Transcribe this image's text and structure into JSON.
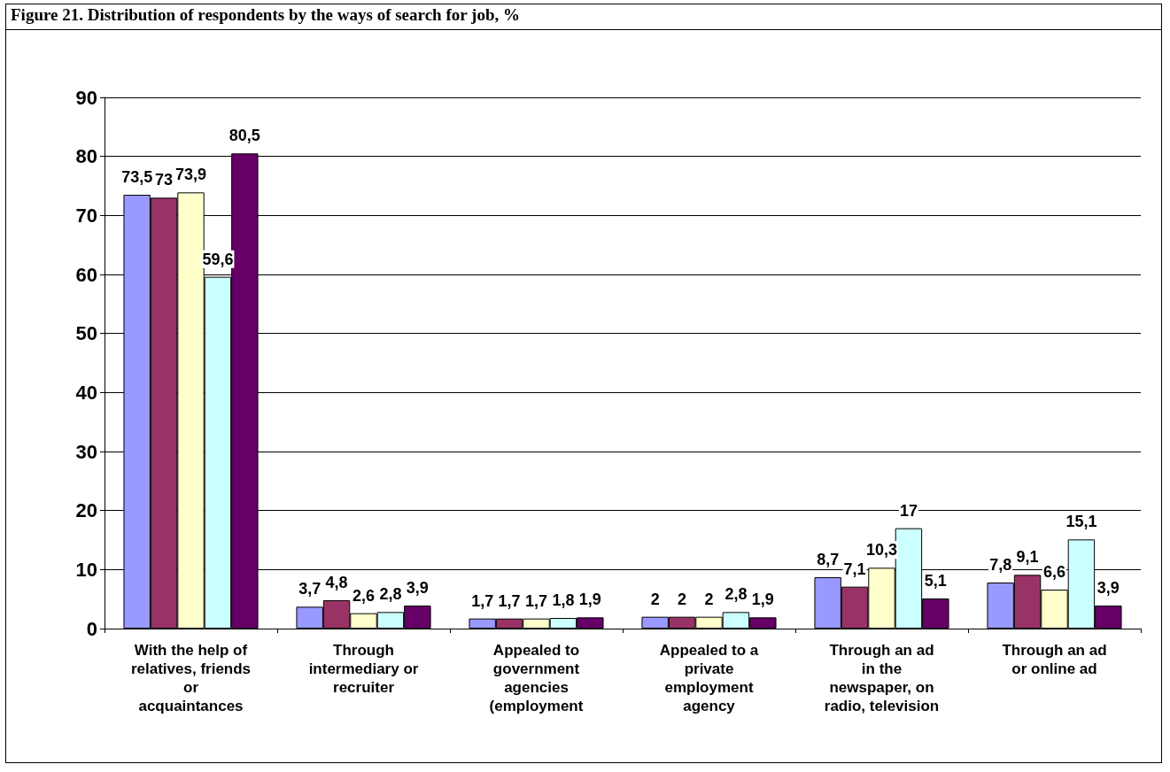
{
  "chart_data": {
    "type": "bar",
    "title": "Figure 21. Distribution of respondents by the ways of search for job, %",
    "categories": [
      "With the help of\nrelatives, friends\nor\nacquaintances",
      "Through\nintermediary or\nrecruiter",
      "Appealed to\ngovernment\nagencies\n(employment",
      "Appealed to a\nprivate\nemployment\nagency",
      "Through an ad\nin the\nnewspaper, on\nradio, television",
      "Through an ad\nor online ad"
    ],
    "series": [
      {
        "color": "#9999ff",
        "values": [
          73.5,
          3.7,
          1.7,
          2,
          8.7,
          7.8
        ],
        "value_labels": [
          "73,5",
          "3,7",
          "1,7",
          "2",
          "8,7",
          "7,8"
        ]
      },
      {
        "color": "#993366",
        "values": [
          73,
          4.8,
          1.7,
          2,
          7.1,
          9.1
        ],
        "value_labels": [
          "73",
          "4,8",
          "1,7",
          "2",
          "7,1",
          "9,1"
        ]
      },
      {
        "color": "#ffffcc",
        "values": [
          73.9,
          2.6,
          1.7,
          2,
          10.3,
          6.6
        ],
        "value_labels": [
          "73,9",
          "2,6",
          "1,7",
          "2",
          "10,3",
          "6,6"
        ]
      },
      {
        "color": "#ccffff",
        "values": [
          59.6,
          2.8,
          1.8,
          2.8,
          17,
          15.1
        ],
        "value_labels": [
          "59,6",
          "2,8",
          "1,8",
          "2,8",
          "17",
          "15,1"
        ]
      },
      {
        "color": "#660066",
        "values": [
          80.5,
          3.9,
          1.9,
          1.9,
          5.1,
          3.9
        ],
        "value_labels": [
          "80,5",
          "3,9",
          "1,9",
          "1,9",
          "5,1",
          "3,9"
        ]
      }
    ],
    "ylim": [
      0,
      90
    ],
    "yticks": [
      0,
      10,
      20,
      30,
      40,
      50,
      60,
      70,
      80,
      90
    ],
    "grid": "y"
  }
}
